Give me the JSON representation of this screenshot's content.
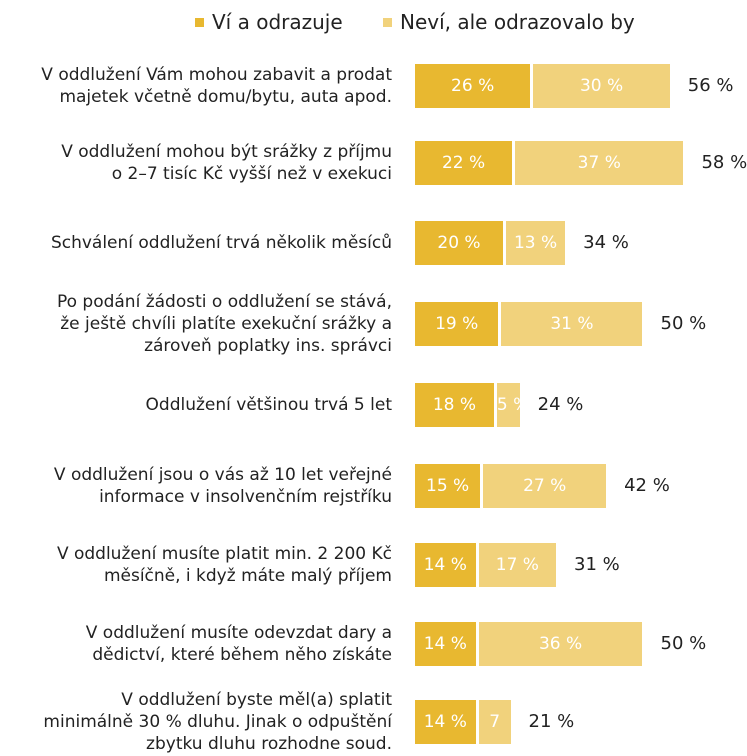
{
  "chart_data": {
    "type": "bar",
    "orientation": "horizontal",
    "stacked": true,
    "legend_position": "top",
    "series": [
      {
        "name": "Ví a odrazuje",
        "color": "#E8B830",
        "values": [
          26,
          22,
          20,
          19,
          18,
          15,
          14,
          14,
          14
        ],
        "labels": [
          "26 %",
          "22 %",
          "20 %",
          "19 %",
          "18 %",
          "15 %",
          "14 %",
          "14 %",
          "14 %"
        ]
      },
      {
        "name": "Neví, ale odrazovalo by",
        "color": "#F1D27C",
        "values": [
          30,
          37,
          13,
          31,
          5,
          27,
          17,
          36,
          7
        ],
        "labels": [
          "30 %",
          "37 %",
          "13 %",
          "31 %",
          "5 %",
          "27 %",
          "17 %",
          "36 %",
          "7"
        ]
      }
    ],
    "categories": [
      [
        "V oddlužení Vám mohou zabavit a prodat",
        "majetek včetně domu/bytu, auta apod."
      ],
      [
        "V oddlužení mohou být srážky z příjmu",
        "o 2–7 tisíc Kč vyšší než v exekuci"
      ],
      [
        "Schválení oddlužení trvá několik měsíců"
      ],
      [
        "Po podání žádosti o oddlužení se stává,",
        "že ještě chvíli platíte exekuční srážky a",
        "zároveň poplatky ins. správci"
      ],
      [
        "Oddlužení většinou trvá 5 let"
      ],
      [
        "V oddlužení jsou o vás až 10 let veřejné",
        "informace v insolvenčním rejstříku"
      ],
      [
        "V oddlužení musíte platit min. 2 200 Kč",
        "měsíčně, i když máte malý příjem"
      ],
      [
        "V oddlužení musíte odevzdat dary a",
        "dědictví, které během něho získáte"
      ],
      [
        "V oddlužení byste měl(a) splatit",
        "minimálně 30 % dluhu. Jinak o odpuštění",
        "zbytku dluhu rozhodne soud."
      ]
    ],
    "totals": [
      "56 %",
      "58 %",
      "34 %",
      "50 %",
      "24 %",
      "42 %",
      "31 %",
      "50 %",
      "21 %"
    ]
  }
}
